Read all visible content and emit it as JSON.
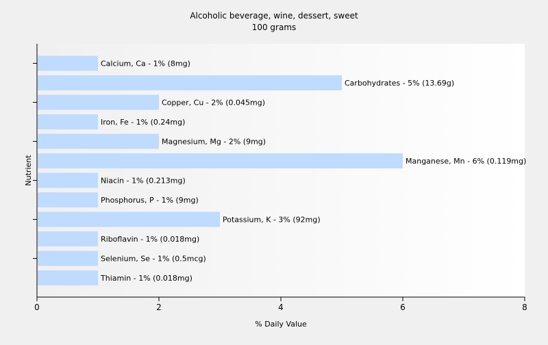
{
  "chart_data": {
    "type": "bar",
    "orientation": "horizontal",
    "title": "Alcoholic beverage, wine, dessert, sweet",
    "subtitle": "100 grams",
    "xlabel": "% Daily Value",
    "ylabel": "Nutrient",
    "xlim": [
      0,
      8
    ],
    "xticks": [
      "0",
      "2",
      "4",
      "6",
      "8"
    ],
    "grid": false,
    "legend": "none",
    "bar_color": "#bfdbff",
    "categories": [
      "Calcium, Ca",
      "Carbohydrates",
      "Copper, Cu",
      "Iron, Fe",
      "Magnesium, Mg",
      "Manganese, Mn",
      "Niacin",
      "Phosphorus, P",
      "Potassium, K",
      "Riboflavin",
      "Selenium, Se",
      "Thiamin"
    ],
    "values": [
      1,
      5,
      2,
      1,
      2,
      6,
      1,
      1,
      3,
      1,
      1,
      1
    ],
    "data_labels": [
      "Calcium, Ca - 1% (8mg)",
      "Carbohydrates - 5% (13.69g)",
      "Copper, Cu - 2% (0.045mg)",
      "Iron, Fe - 1% (0.24mg)",
      "Magnesium, Mg - 2% (9mg)",
      "Manganese, Mn - 6% (0.119mg)",
      "Niacin - 1% (0.213mg)",
      "Phosphorus, P - 1% (9mg)",
      "Potassium, K - 3% (92mg)",
      "Riboflavin - 1% (0.018mg)",
      "Selenium, Se - 1% (0.5mcg)",
      "Thiamin - 1% (0.018mg)"
    ]
  }
}
